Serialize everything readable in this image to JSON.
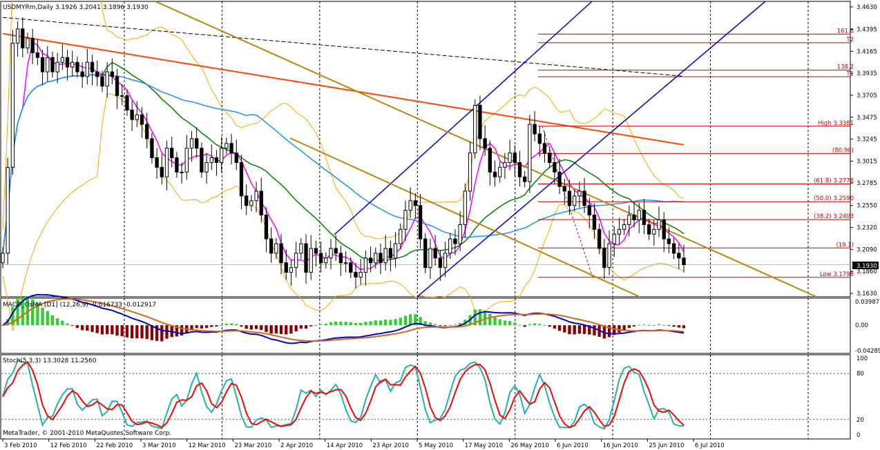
{
  "chart_data": {
    "type": "candlestick",
    "symbol": "USDMYRm",
    "timeframe": "Daily",
    "header": {
      "title": "USDMYRm,Daily  3.1926 3.2041 3.1896 3.1930",
      "open": 3.1926,
      "high": 3.2041,
      "low": 3.1896,
      "close": 3.193
    },
    "price_axis": {
      "ticks": [
        "3.4630",
        "3.4395",
        "3.4165",
        "3.3935",
        "3.3705",
        "3.3475",
        "3.3245",
        "3.3015",
        "3.2785",
        "3.2550",
        "3.2320",
        "3.2090",
        "3.1860",
        "3.1630"
      ],
      "ylim": [
        3.163,
        3.463
      ],
      "current_price_label": "3.1930",
      "current_price": 3.193
    },
    "time_axis": {
      "labels": [
        "3 Feb 2010",
        "12 Feb 2010",
        "22 Feb 2010",
        "3 Mar 2010",
        "12 Mar 2010",
        "23 Mar 2010",
        "2 Apr 2010",
        "14 Apr 2010",
        "23 Apr 2010",
        "5 May 2010",
        "17 May 2010",
        "26 May 2010",
        "6 Jun 2010",
        "16 Jun 2010",
        "25 Jun 2010",
        "6 Jul 2010"
      ]
    },
    "fibonacci_levels": [
      {
        "label": "161.8",
        "price": 3.4345
      },
      {
        "label": "T2",
        "price": 3.4255
      },
      {
        "label": "138.2",
        "price": 3.3968
      },
      {
        "label": "T1",
        "price": 3.3898
      },
      {
        "label": "High  3.3381",
        "price": 3.3381
      },
      {
        "label": "(80.90)",
        "price": 3.3095
      },
      {
        "label": "(61.8) 3.2776",
        "price": 3.2776
      },
      {
        "label": "(50.0)  3.2590",
        "price": 3.259
      },
      {
        "label": "(38.2) 3.2403",
        "price": 3.2403
      },
      {
        "label": "(19.1)",
        "price": 3.2105
      },
      {
        "label": "Low  3.1798",
        "price": 3.1798
      }
    ],
    "close_series": [
      3.205,
      3.295,
      3.425,
      3.44,
      3.42,
      3.43,
      3.415,
      3.41,
      3.395,
      3.41,
      3.395,
      3.405,
      3.41,
      3.4,
      3.405,
      3.395,
      3.39,
      3.405,
      3.395,
      3.39,
      3.38,
      3.395,
      3.39,
      3.37,
      3.37,
      3.355,
      3.345,
      3.35,
      3.34,
      3.325,
      3.305,
      3.295,
      3.285,
      3.315,
      3.305,
      3.29,
      3.29,
      3.315,
      3.325,
      3.315,
      3.29,
      3.3,
      3.305,
      3.3,
      3.315,
      3.32,
      3.31,
      3.3,
      3.265,
      3.255,
      3.26,
      3.27,
      3.245,
      3.22,
      3.205,
      3.215,
      3.195,
      3.185,
      3.19,
      3.205,
      3.215,
      3.185,
      3.21,
      3.205,
      3.195,
      3.2,
      3.21,
      3.205,
      3.195,
      3.195,
      3.185,
      3.18,
      3.185,
      3.2,
      3.195,
      3.205,
      3.195,
      3.21,
      3.2,
      3.215,
      3.23,
      3.25,
      3.26,
      3.255,
      3.22,
      3.19,
      3.21,
      3.2,
      3.19,
      3.205,
      3.22,
      3.215,
      3.235,
      3.27,
      3.31,
      3.36,
      3.325,
      3.315,
      3.29,
      3.285,
      3.295,
      3.3,
      3.31,
      3.3,
      3.285,
      3.28,
      3.34,
      3.33,
      3.32,
      3.31,
      3.3,
      3.29,
      3.275,
      3.27,
      3.255,
      3.265,
      3.27,
      3.255,
      3.245,
      3.23,
      3.21,
      3.19,
      3.215,
      3.225,
      3.23,
      3.235,
      3.245,
      3.24,
      3.25,
      3.235,
      3.225,
      3.23,
      3.24,
      3.22,
      3.215,
      3.205,
      3.2,
      3.193
    ],
    "indicators": {
      "moving_averages": [
        "ma-fast-magenta",
        "ma-green",
        "ma-blue",
        "ma-orangered",
        "ma-black-dashed"
      ],
      "bollinger_bands": "orange",
      "colors": {
        "bull_candle": "#ffffff",
        "bear_candle": "#000000",
        "ma_fast": "#ff00ff",
        "ma_mid": "#008000",
        "ma_slow": "#1e90ff",
        "ma_long": "#ff4500",
        "ma_longest": "#000000",
        "bands": "#ffa500",
        "channel_blue": "#0000cd",
        "channel_brown": "#b8860b",
        "fib": "#cc0000",
        "vgrid": "#000000",
        "hist_pos": "#32cd32",
        "hist_neg": "#8b0000",
        "macd_main": "#0000cd",
        "macd_signal": "#d2691e",
        "stoch_main": "#20b2aa",
        "stoch_signal": "#ff0000",
        "stoch_level": "#008000"
      }
    },
    "macd_panel": {
      "title": "MACD_OsMA [D1] (12,26,9) -0.016733 -0.012917",
      "ticks": [
        "0.03987",
        "0.00",
        "-0.04289"
      ],
      "ylim": [
        -0.04289,
        0.03987
      ]
    },
    "stoch_panel": {
      "title": "Stoch(5,3,3) 13.3028 11.2560",
      "ticks": [
        "100",
        "80",
        "20",
        "0"
      ],
      "ylim": [
        0,
        100
      ],
      "levels": [
        80,
        20
      ]
    },
    "vertical_grid_dates": [
      "12 Feb 2010",
      "3 Mar 2010",
      "23 Mar 2010",
      "14 Apr 2010",
      "5 May 2010",
      "26 May 2010",
      "16 Jun 2010",
      "6 Jul 2010"
    ],
    "copyright": "MetaTrader, © 2001-2010 MetaQuotes Software Corp."
  }
}
